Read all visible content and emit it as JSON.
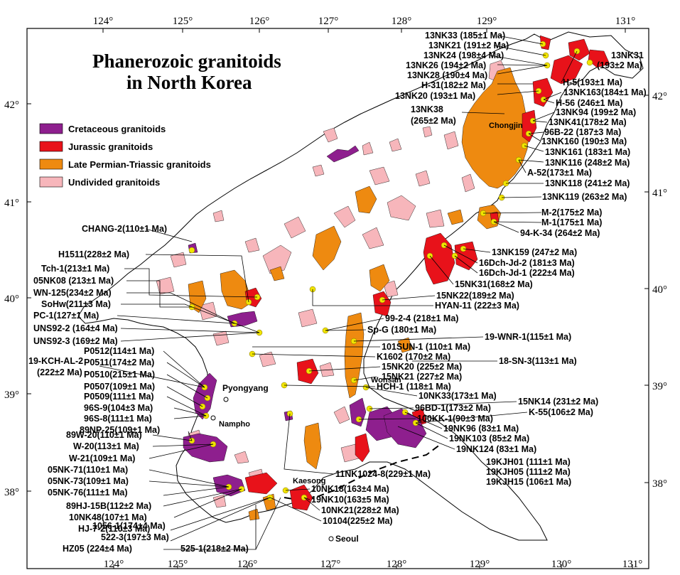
{
  "title": [
    "Phanerozoic granitoids",
    "in North Korea"
  ],
  "longitude_labels": [
    "124°",
    "125°",
    "126°",
    "127°",
    "128°",
    "129°",
    "130°",
    "131°"
  ],
  "latitude_labels": [
    "42°",
    "41°",
    "40°",
    "39°",
    "38°"
  ],
  "legend": [
    {
      "label": "Cretaceous granitoids",
      "color": "#8e1f8e"
    },
    {
      "label": "Jurassic granitoids",
      "color": "#e8121a"
    },
    {
      "label": "Late Permian-Triassic granitoids",
      "color": "#ee8a10"
    },
    {
      "label": "Undivided granitoids",
      "color": "#f7b6bb"
    }
  ],
  "cities": {
    "chongjin": "Chongjin",
    "pyongyang": "Pyongyang",
    "nampho": "Nampho",
    "wonsan": "Wonsan",
    "kaesong": "Kaesong",
    "seoul": "Seoul"
  },
  "samples_right": [
    "13NK33 (185±1 Ma)",
    "13NK21 (191±2 Ma)",
    "13NK24 (198±4 Ma)",
    "13NK26 (194±2 Ma)",
    "13NK28 (190±4 Ma)",
    "H-31(182±2 Ma)",
    "13NK20 (193±1 Ma)",
    "H-5(193±1 Ma)",
    "13NK163(184±1 Ma)",
    "H-56 (246±1 Ma)",
    "13NK94 (199±2 Ma)",
    "13NK41(178±2 Ma)",
    "96B-22 (187±3 Ma)",
    "13NK160 (190±3 Ma)",
    "13NK161 (183±1 Ma)",
    "13NK116 (248±2 Ma)",
    "A-52(173±1 Ma)",
    "13NK118 (241±2 Ma)",
    "13NK119 (263±2 Ma)",
    "M-2(175±2 Ma)",
    "M-1(175±1 Ma)",
    "94-K-34 (264±2 Ma)",
    "13NK159 (247±2 Ma)",
    "16Dch-Jd-2 (181±3 Ma)",
    "16Dch-Jd-1 (222±4 Ma)",
    "15NK31(168±2 Ma)",
    "15NK22(189±2 Ma)",
    "HYAN-11 (222±3 Ma)",
    "99-2-4 (218±1 Ma)",
    "Sp-G (180±1 Ma)",
    "19-WNR-1(115±1 Ma)",
    "101SUN-1 (110±1 Ma)",
    "K1602 (170±2 Ma)",
    "18-SN-3(113±1 Ma)",
    "15NK20 (225±2 Ma)",
    "15NK21 (227±2 Ma)",
    "HCH-1 (118±1 Ma)",
    "10NK33(173±1 Ma)",
    "15NK14 (231±2 Ma)",
    "96BD-1(173±2 Ma)",
    "K-55(106±2 Ma)",
    "100KK-1(90±3 Ma)",
    "19NK96 (83±1 Ma)",
    "19NK103 (85±2 Ma)",
    "19NK124 (83±1 Ma)",
    "19KJH01 (111±1 Ma)",
    "19KJH05 (111±2 Ma)",
    "19KJH15 (106±1 Ma)",
    "11NK1024-8(229±1 Ma)",
    "10NK18(163±4 Ma)",
    "19NK10(163±5 Ma)",
    "10NK21(228±2 Ma)",
    "10104(225±2 Ma)"
  ],
  "samples_top_extra": [
    "13NK31",
    "(193±2 Ma)",
    "13NK38",
    "(265±2 Ma)"
  ],
  "samples_left": [
    "CHANG-2(110±1 Ma)",
    "H1511(228±2 Ma)",
    "Tch-1(213±1 Ma)",
    "05NK08 (213±1 Ma)",
    "WN-125(234±2 Ma)",
    "SoHw(211±3 Ma)",
    "PC-1(127±1 Ma)",
    "UNS92-2 (164±4 Ma)",
    "UNS92-3 (169±2 Ma)",
    "19-KCH-AL-2",
    "(222±2 Ma)",
    "P0512(114±1 Ma)",
    "P0511(174±2 Ma)",
    "P0510(215±1 Ma)",
    "P0507(109±1 Ma)",
    "P0509(111±1 Ma)",
    "96S-9(104±3 Ma)",
    "96S-8(111±1 Ma)",
    "89NP-25(109±1 Ma)",
    "89W-20(110±1 Ma)",
    "W-20(113±1 Ma)",
    "W-21(109±1 Ma)",
    "05NK-71(110±1 Ma)",
    "05NK-73(109±1 Ma)",
    "05NK-76(111±1 Ma)",
    "89HJ-15B(112±2 Ma)",
    "10NK48(107±1 Ma)",
    "HJ-7-2(110±3 Ma)",
    "1056-1(174±4 Ma)",
    "522-3(197±3 Ma)",
    "HZ05 (224±4 Ma)",
    "525-1(218±2 Ma)"
  ]
}
